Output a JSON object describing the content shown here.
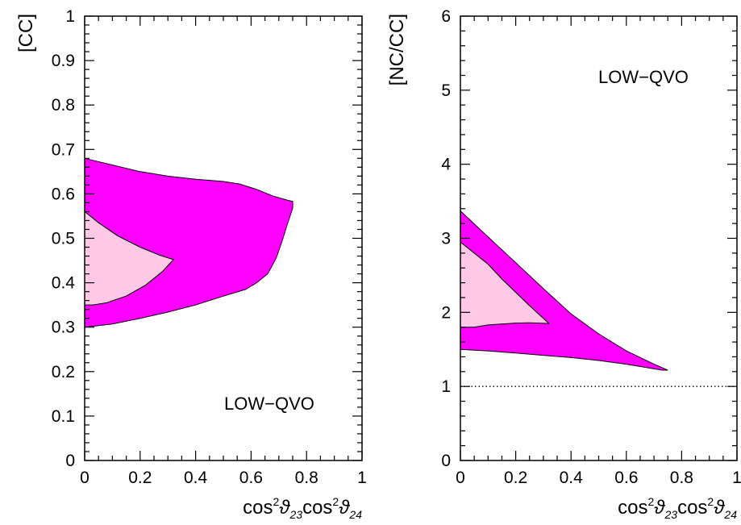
{
  "chart_data": [
    {
      "type": "area",
      "ylabel": "[CC]",
      "xlabel_parts": [
        "cos",
        "2",
        "ϑ",
        "23",
        "cos",
        "2",
        "ϑ",
        "24"
      ],
      "xlim": [
        0,
        1
      ],
      "ylim": [
        0,
        1
      ],
      "xticks": [
        0,
        0.2,
        0.4,
        0.6,
        0.8,
        1
      ],
      "xtick_labels": [
        "0",
        "0.2",
        "0.4",
        "0.6",
        "0.8",
        "1"
      ],
      "yticks": [
        0,
        0.1,
        0.2,
        0.3,
        0.4,
        0.5,
        0.6,
        0.7,
        0.8,
        0.9,
        1
      ],
      "ytick_labels": [
        "0",
        "0.1",
        "0.2",
        "0.3",
        "0.4",
        "0.5",
        "0.6",
        "0.7",
        "0.8",
        "0.9",
        "1"
      ],
      "annotation": "LOW−QVO",
      "series": [
        {
          "role": "outer",
          "color": "#ff00ff",
          "points": [
            [
              0,
              0.68
            ],
            [
              0.1,
              0.665
            ],
            [
              0.2,
              0.65
            ],
            [
              0.3,
              0.64
            ],
            [
              0.4,
              0.633
            ],
            [
              0.5,
              0.628
            ],
            [
              0.56,
              0.622
            ],
            [
              0.62,
              0.61
            ],
            [
              0.68,
              0.595
            ],
            [
              0.73,
              0.586
            ],
            [
              0.75,
              0.583
            ],
            [
              0.75,
              0.568
            ],
            [
              0.73,
              0.53
            ],
            [
              0.71,
              0.49
            ],
            [
              0.69,
              0.455
            ],
            [
              0.66,
              0.42
            ],
            [
              0.62,
              0.4
            ],
            [
              0.58,
              0.385
            ],
            [
              0.5,
              0.37
            ],
            [
              0.4,
              0.35
            ],
            [
              0.3,
              0.334
            ],
            [
              0.2,
              0.32
            ],
            [
              0.1,
              0.307
            ],
            [
              0,
              0.3
            ]
          ]
        },
        {
          "role": "inner",
          "color": "#ffc8e6",
          "points": [
            [
              0,
              0.56
            ],
            [
              0.05,
              0.535
            ],
            [
              0.12,
              0.505
            ],
            [
              0.2,
              0.48
            ],
            [
              0.27,
              0.462
            ],
            [
              0.32,
              0.452
            ],
            [
              0.28,
              0.425
            ],
            [
              0.22,
              0.395
            ],
            [
              0.15,
              0.37
            ],
            [
              0.08,
              0.355
            ],
            [
              0.03,
              0.35
            ],
            [
              0,
              0.35
            ]
          ]
        }
      ]
    },
    {
      "type": "area",
      "ylabel": "[NC/CC]",
      "xlabel_parts": [
        "cos",
        "2",
        "ϑ",
        "23",
        "cos",
        "2",
        "ϑ",
        "24"
      ],
      "xlim": [
        0,
        1
      ],
      "ylim": [
        0,
        6
      ],
      "xticks": [
        0,
        0.2,
        0.4,
        0.6,
        0.8,
        1
      ],
      "xtick_labels": [
        "0",
        "0.2",
        "0.4",
        "0.6",
        "0.8",
        "1"
      ],
      "yticks": [
        0,
        1,
        2,
        3,
        4,
        5,
        6
      ],
      "ytick_labels": [
        "0",
        "1",
        "2",
        "3",
        "4",
        "5",
        "6"
      ],
      "annotation": "LOW−QVO",
      "reference_line": {
        "y": 1,
        "style": "dotted"
      },
      "series": [
        {
          "role": "outer",
          "color": "#ff00ff",
          "points": [
            [
              0,
              3.37
            ],
            [
              0.1,
              3.02
            ],
            [
              0.2,
              2.67
            ],
            [
              0.3,
              2.32
            ],
            [
              0.4,
              1.98
            ],
            [
              0.5,
              1.71
            ],
            [
              0.6,
              1.48
            ],
            [
              0.7,
              1.3
            ],
            [
              0.75,
              1.22
            ],
            [
              0.73,
              1.22
            ],
            [
              0.6,
              1.3
            ],
            [
              0.5,
              1.35
            ],
            [
              0.4,
              1.39
            ],
            [
              0.3,
              1.42
            ],
            [
              0.2,
              1.45
            ],
            [
              0.1,
              1.48
            ],
            [
              0,
              1.5
            ]
          ]
        },
        {
          "role": "inner",
          "color": "#ffc8e6",
          "points": [
            [
              0,
              2.95
            ],
            [
              0.05,
              2.8
            ],
            [
              0.1,
              2.65
            ],
            [
              0.15,
              2.45
            ],
            [
              0.2,
              2.27
            ],
            [
              0.25,
              2.09
            ],
            [
              0.32,
              1.85
            ],
            [
              0.25,
              1.86
            ],
            [
              0.2,
              1.855
            ],
            [
              0.1,
              1.83
            ],
            [
              0.05,
              1.8
            ],
            [
              0,
              1.8
            ]
          ]
        }
      ]
    }
  ]
}
